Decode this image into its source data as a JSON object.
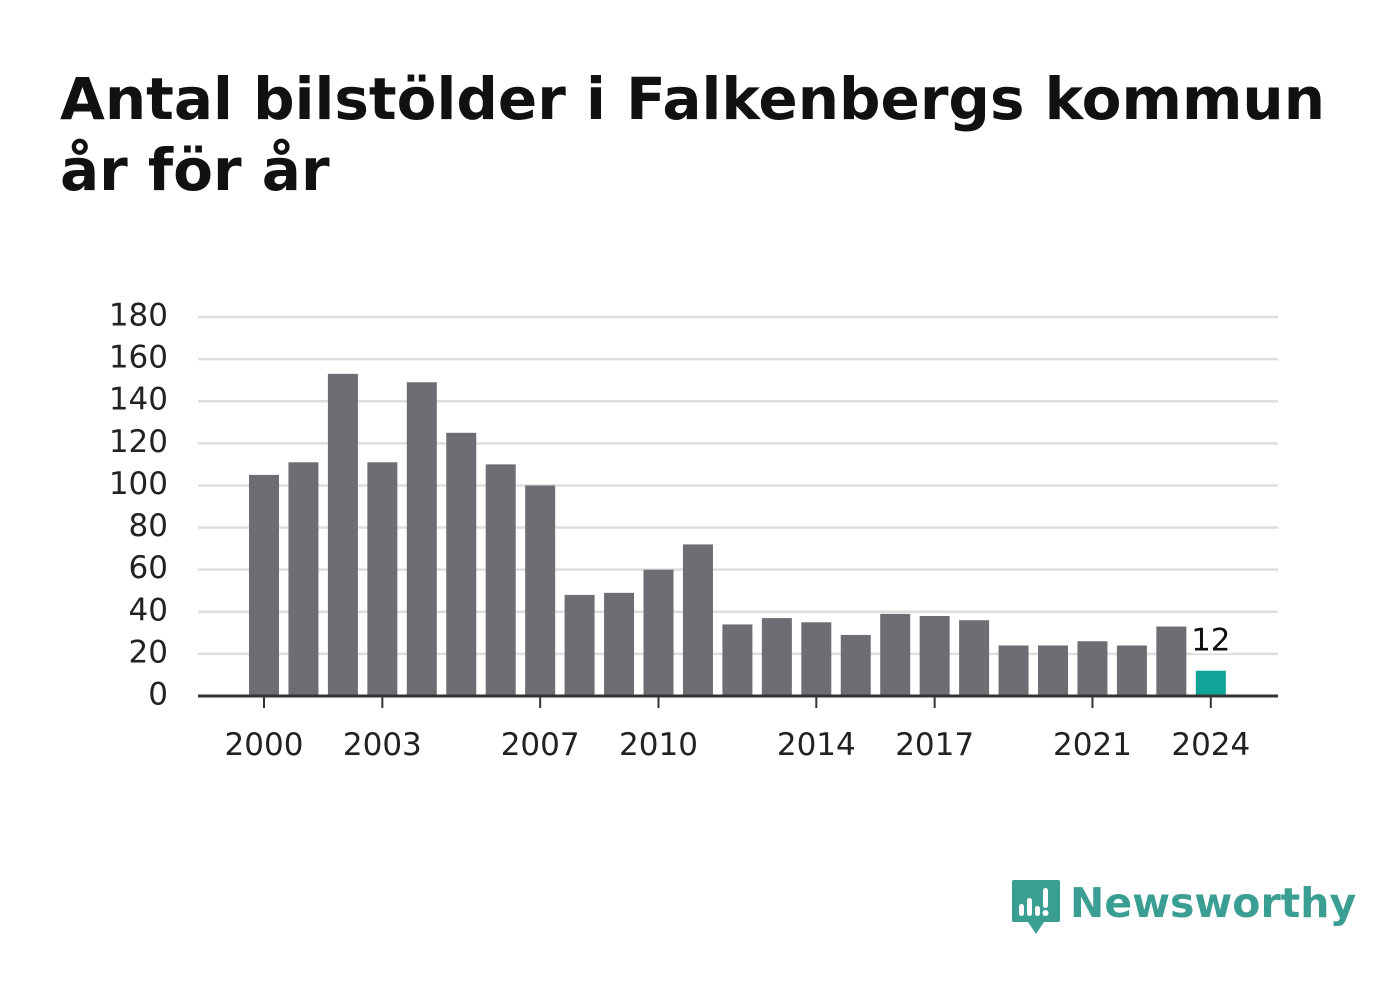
{
  "title": "Antal bilstölder i Falkenbergs kommun år för år",
  "brand": {
    "name": "Newsworthy",
    "color": "#3b9e92",
    "icon": "newsworthy-logo-icon"
  },
  "colors": {
    "bar": "#6e6d73",
    "highlight": "#10a398",
    "grid": "#dedede",
    "axis": "#333333",
    "text": "#222222"
  },
  "chart_data": {
    "type": "bar",
    "title": "Antal bilstölder i Falkenbergs kommun år för år",
    "xlabel": "",
    "ylabel": "",
    "ylim": [
      0,
      180
    ],
    "yticks": [
      0,
      20,
      40,
      60,
      80,
      100,
      120,
      140,
      160,
      180
    ],
    "xtick_labels": [
      "2000",
      "2003",
      "2007",
      "2010",
      "2014",
      "2017",
      "2021",
      "2024"
    ],
    "grid": true,
    "categories": [
      "2000",
      "2001",
      "2002",
      "2003",
      "2004",
      "2005",
      "2006",
      "2007",
      "2008",
      "2009",
      "2010",
      "2011",
      "2012",
      "2013",
      "2014",
      "2015",
      "2016",
      "2017",
      "2018",
      "2019",
      "2020",
      "2021",
      "2022",
      "2023",
      "2024"
    ],
    "values": [
      105,
      111,
      153,
      111,
      149,
      125,
      110,
      100,
      48,
      49,
      60,
      72,
      34,
      37,
      35,
      29,
      39,
      38,
      36,
      24,
      24,
      26,
      24,
      33,
      12
    ],
    "highlight": {
      "category": "2024",
      "value": 12,
      "label": "12"
    }
  }
}
